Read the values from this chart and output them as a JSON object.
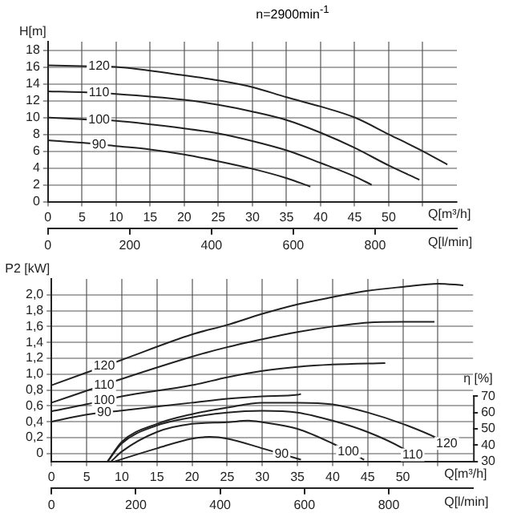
{
  "chart_data": [
    {
      "type": "line",
      "title": "n=2900min$^{-1}$",
      "xlabel": "Q[m³/h]",
      "ylabel": "H[m]",
      "x2label": "Q[l/min]",
      "xlim": [
        0,
        60
      ],
      "xticks": [
        0,
        5,
        10,
        15,
        20,
        25,
        30,
        35,
        40,
        45,
        50,
        {
          "value": 55,
          "label": null
        }
      ],
      "ylim": [
        0,
        19
      ],
      "yticks": [
        0,
        2,
        4,
        6,
        8,
        10,
        12,
        14,
        16,
        18
      ],
      "x2lim": [
        0,
        1000
      ],
      "x2ticks": [
        0,
        200,
        400,
        600,
        800
      ],
      "grid": true,
      "legend": false,
      "marker": "none",
      "line_style": "solid",
      "series": [
        {
          "name": "120",
          "color": "#222222",
          "x": [
            0,
            5,
            10,
            20,
            25,
            30,
            35,
            40,
            45,
            50,
            55,
            58.6
          ],
          "values": [
            16.2,
            16.1,
            16,
            15,
            14.4,
            13.6,
            12.4,
            11.3,
            10,
            8,
            6,
            4.4
          ]
        },
        {
          "name": "110",
          "color": "#222222",
          "x": [
            0,
            5,
            10,
            20,
            25,
            30,
            35,
            40,
            45,
            50,
            54.5
          ],
          "values": [
            13.1,
            13,
            12.8,
            12.1,
            11.5,
            10.7,
            9.7,
            8.2,
            6.4,
            4.3,
            2.6
          ]
        },
        {
          "name": "100",
          "color": "#222222",
          "x": [
            0,
            5,
            10,
            20,
            25,
            30,
            35,
            40,
            45,
            47.5
          ],
          "values": [
            10,
            9.8,
            9.6,
            8.7,
            8.1,
            7.2,
            6.1,
            4.6,
            3,
            2
          ]
        },
        {
          "name": "90",
          "color": "#222222",
          "x": [
            0,
            5,
            10,
            15,
            20,
            25,
            30,
            35,
            38.5
          ],
          "values": [
            7.3,
            7,
            6.6,
            6.2,
            5.6,
            4.8,
            3.9,
            2.8,
            1.8
          ]
        }
      ]
    },
    {
      "type": "line",
      "xlabel": "Q[m³/h]",
      "ylabel": "P2 [kW]",
      "y2label": "η [%]",
      "x2label": "Q[l/min]",
      "xlim": [
        0,
        60
      ],
      "xticks": [
        0,
        5,
        10,
        15,
        20,
        25,
        30,
        35,
        40,
        45,
        50,
        {
          "value": 55,
          "label": null
        }
      ],
      "ylim": [
        -0.1,
        2.2
      ],
      "yticks": [
        0,
        {
          "value": 0.2,
          "label": "0,2"
        },
        {
          "value": 0.4,
          "label": "0,4"
        },
        {
          "value": 0.6,
          "label": "0,6"
        },
        {
          "value": 0.8,
          "label": "0,8"
        },
        {
          "value": 1,
          "label": "1,0"
        },
        {
          "value": 1.2,
          "label": "1,2"
        },
        {
          "value": 1.4,
          "label": "1,4"
        },
        {
          "value": 1.6,
          "label": "1,6"
        },
        {
          "value": 1.8,
          "label": "1,8"
        },
        {
          "value": 2,
          "label": "2,0"
        }
      ],
      "y2lim": [
        30,
        142
      ],
      "y2ticks": [
        30,
        40,
        50,
        60,
        70
      ],
      "x2lim": [
        0,
        1000
      ],
      "x2ticks": [
        0,
        200,
        400,
        600,
        800
      ],
      "grid": true,
      "legend": false,
      "marker": "none",
      "line_style": "solid",
      "series": [
        {
          "name": "120",
          "color": "#222222",
          "x": [
            0,
            5,
            10,
            20,
            25,
            30,
            35,
            40,
            45,
            50,
            55,
            58.6
          ],
          "values": [
            0.86,
            1.02,
            1.18,
            1.5,
            1.62,
            1.76,
            1.88,
            1.97,
            2.05,
            2.1,
            2.14,
            2.12
          ]
        },
        {
          "name": "110",
          "color": "#222222",
          "x": [
            0,
            5,
            10,
            20,
            25,
            30,
            35,
            40,
            45,
            50,
            54.5
          ],
          "values": [
            0.64,
            0.79,
            0.94,
            1.22,
            1.34,
            1.44,
            1.53,
            1.6,
            1.65,
            1.66,
            1.66
          ]
        },
        {
          "name": "100",
          "color": "#222222",
          "x": [
            0,
            5,
            10,
            20,
            25,
            30,
            35,
            40,
            47.5
          ],
          "values": [
            0.53,
            0.62,
            0.72,
            0.86,
            0.96,
            1.04,
            1.09,
            1.12,
            1.14
          ]
        },
        {
          "name": "90",
          "color": "#222222",
          "x": [
            0,
            5,
            10,
            15,
            20,
            25,
            30,
            35,
            35.5
          ],
          "values": [
            0.4,
            0.49,
            0.54,
            0.59,
            0.64,
            0.69,
            0.72,
            0.74,
            0.75
          ]
        },
        {
          "name": "120",
          "color": "#222222",
          "axis": "y2",
          "x": [
            8,
            10,
            15,
            20,
            25,
            30,
            35,
            40,
            45,
            50,
            55,
            57.5
          ],
          "values": [
            30,
            42,
            53,
            59,
            63,
            66,
            66,
            65,
            60,
            53,
            44,
            38
          ]
        },
        {
          "name": "110",
          "color": "#222222",
          "axis": "y2",
          "x": [
            8,
            10,
            15,
            20,
            25,
            30,
            35,
            40,
            45,
            50,
            52.8
          ],
          "values": [
            30,
            41,
            52,
            57,
            60,
            61,
            60,
            55,
            48,
            38,
            30
          ]
        },
        {
          "name": "100",
          "color": "#222222",
          "axis": "y2",
          "x": [
            8.5,
            10,
            15,
            20,
            25,
            28,
            30,
            35,
            40,
            44.5
          ],
          "values": [
            30,
            36,
            48,
            53,
            54,
            55,
            54,
            50,
            41,
            31
          ]
        },
        {
          "name": "90",
          "color": "#222222",
          "axis": "y2",
          "x": [
            9,
            15,
            20,
            22.5,
            25,
            30,
            35.5
          ],
          "values": [
            30,
            38,
            44,
            45,
            44,
            38,
            31
          ]
        }
      ]
    }
  ]
}
